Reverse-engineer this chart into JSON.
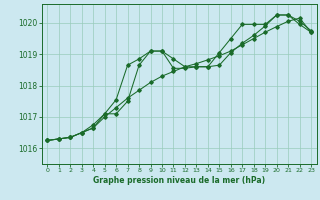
{
  "title": "Graphe pression niveau de la mer (hPa)",
  "bg_color": "#cce8f0",
  "grid_color": "#99ccbb",
  "line_color": "#1a6b2a",
  "xlim": [
    -0.5,
    23.5
  ],
  "ylim": [
    1015.5,
    1020.6
  ],
  "yticks": [
    1016,
    1017,
    1018,
    1019,
    1020
  ],
  "xticks": [
    0,
    1,
    2,
    3,
    4,
    5,
    6,
    7,
    8,
    9,
    10,
    11,
    12,
    13,
    14,
    15,
    16,
    17,
    18,
    19,
    20,
    21,
    22,
    23
  ],
  "series_wavy": [
    1016.25,
    1016.3,
    1016.35,
    1016.5,
    1016.75,
    1017.1,
    1017.1,
    1017.5,
    1018.65,
    1019.1,
    1019.1,
    1018.85,
    1018.6,
    1018.6,
    1018.6,
    1018.65,
    1019.05,
    1019.35,
    1019.6,
    1019.9,
    1020.25,
    1020.25,
    1020.05,
    1019.75
  ],
  "series_main": [
    1016.25,
    1016.3,
    1016.35,
    1016.5,
    1016.65,
    1017.1,
    1017.55,
    1018.65,
    1018.85,
    1019.1,
    1019.1,
    1018.55,
    1018.55,
    1018.6,
    1018.6,
    1019.05,
    1019.5,
    1019.95,
    1019.95,
    1019.95,
    1020.25,
    1020.25,
    1019.95,
    1019.7
  ],
  "series_diag": [
    1016.25,
    1016.3,
    1016.35,
    1016.5,
    1016.65,
    1017.0,
    1017.3,
    1017.6,
    1017.85,
    1018.1,
    1018.3,
    1018.45,
    1018.6,
    1018.7,
    1018.82,
    1018.95,
    1019.1,
    1019.3,
    1019.5,
    1019.7,
    1019.88,
    1020.05,
    1020.15,
    1019.7
  ]
}
